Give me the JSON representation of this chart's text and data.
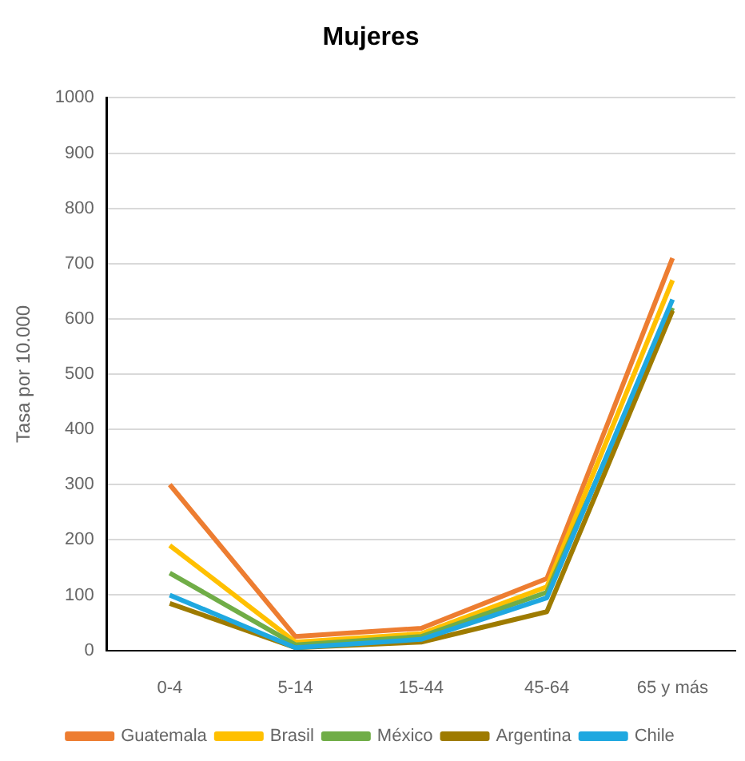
{
  "chart_data": {
    "type": "line",
    "title": "Mujeres",
    "ylabel": "Tasa por 10.000",
    "categories": [
      "0-4",
      "5-14",
      "15-44",
      "45-64",
      "65 y más"
    ],
    "series": [
      {
        "name": "Guatemala",
        "color": "#ed7d31",
        "values": [
          300,
          25,
          40,
          130,
          710
        ]
      },
      {
        "name": "Brasil",
        "color": "#ffc000",
        "values": [
          190,
          15,
          30,
          115,
          670
        ]
      },
      {
        "name": "México",
        "color": "#70ad47",
        "values": [
          140,
          10,
          25,
          105,
          620
        ]
      },
      {
        "name": "Argentina",
        "color": "#9e7b00",
        "values": [
          85,
          5,
          15,
          70,
          615
        ]
      },
      {
        "name": "Chile",
        "color": "#1fa8e0",
        "values": [
          100,
          5,
          20,
          95,
          635
        ]
      }
    ],
    "ylim": [
      0,
      1000
    ],
    "yticks": [
      0,
      100,
      200,
      300,
      400,
      500,
      600,
      700,
      800,
      900,
      1000
    ],
    "grid": "y",
    "legend": "bottom",
    "marker": "none",
    "line_style": "solid"
  }
}
